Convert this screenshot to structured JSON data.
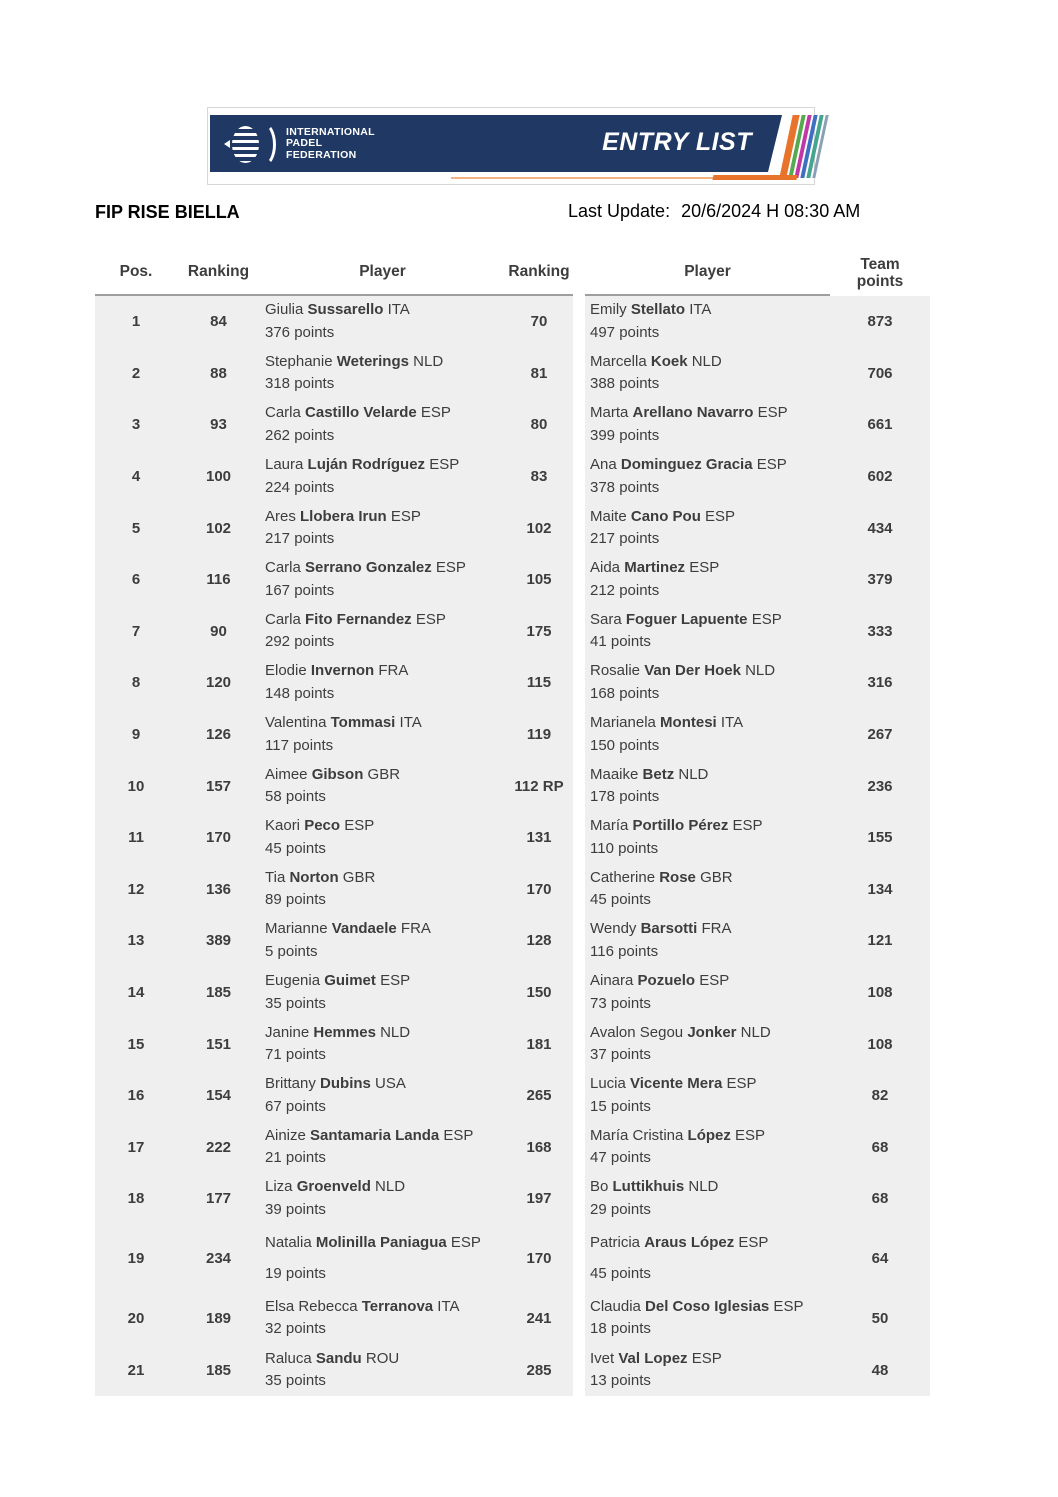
{
  "banner": {
    "logo_lines": [
      "INTERNATIONAL",
      "PADEL",
      "FEDERATION"
    ],
    "entry_list": "ENTRY LIST"
  },
  "header": {
    "title": "FIP RISE BIELLA",
    "last_update_label": "Last Update:",
    "last_update_value": "20/6/2024 H 08:30 AM"
  },
  "colors": {
    "navy": "#1f3864",
    "orange": "#e8742c",
    "orange_light": "#f4b183",
    "row_bg": "#efefef",
    "header_border": "#9e9e9e",
    "text": "#3d3d3d",
    "stripes": [
      "#e8742c",
      "#56a94f",
      "#c237a8",
      "#3e6fc1",
      "#45a58f",
      "#8aa0b4"
    ]
  },
  "table": {
    "columns": [
      "Pos.",
      "Ranking",
      "Player",
      "Ranking",
      "Player",
      "Team points"
    ],
    "rows": [
      {
        "pos": "1",
        "t1": {
          "rank": "84",
          "first": "Giulia",
          "last": "Sussarello",
          "country": "ITA",
          "points": "376 points"
        },
        "t2": {
          "rank": "70",
          "first": "Emily",
          "last": "Stellato",
          "country": "ITA",
          "points": "497 points"
        },
        "team": "873"
      },
      {
        "pos": "2",
        "t1": {
          "rank": "88",
          "first": "Stephanie",
          "last": "Weterings",
          "country": "NLD",
          "points": "318 points"
        },
        "t2": {
          "rank": "81",
          "first": "Marcella",
          "last": "Koek",
          "country": "NLD",
          "points": "388 points"
        },
        "team": "706"
      },
      {
        "pos": "3",
        "t1": {
          "rank": "93",
          "first": "Carla",
          "last": "Castillo Velarde",
          "country": "ESP",
          "points": "262 points"
        },
        "t2": {
          "rank": "80",
          "first": "Marta",
          "last": "Arellano Navarro",
          "country": "ESP",
          "points": "399 points"
        },
        "team": "661"
      },
      {
        "pos": "4",
        "t1": {
          "rank": "100",
          "first": "Laura",
          "last": "Luján Rodríguez",
          "country": "ESP",
          "points": "224 points"
        },
        "t2": {
          "rank": "83",
          "first": "Ana",
          "last": "Dominguez Gracia",
          "country": "ESP",
          "points": "378 points"
        },
        "team": "602"
      },
      {
        "pos": "5",
        "t1": {
          "rank": "102",
          "first": "Ares",
          "last": "Llobera Irun",
          "country": "ESP",
          "points": "217 points"
        },
        "t2": {
          "rank": "102",
          "first": "Maite",
          "last": "Cano Pou",
          "country": "ESP",
          "points": "217 points"
        },
        "team": "434"
      },
      {
        "pos": "6",
        "t1": {
          "rank": "116",
          "first": "Carla",
          "last": "Serrano Gonzalez",
          "country": "ESP",
          "points": "167 points"
        },
        "t2": {
          "rank": "105",
          "first": "Aida",
          "last": "Martinez",
          "country": "ESP",
          "points": "212 points"
        },
        "team": "379"
      },
      {
        "pos": "7",
        "t1": {
          "rank": "90",
          "first": "Carla",
          "last": "Fito Fernandez",
          "country": "ESP",
          "points": "292 points"
        },
        "t2": {
          "rank": "175",
          "first": "Sara",
          "last": "Foguer Lapuente",
          "country": "ESP",
          "points": "41 points"
        },
        "team": "333"
      },
      {
        "pos": "8",
        "t1": {
          "rank": "120",
          "first": "Elodie",
          "last": "Invernon",
          "country": "FRA",
          "points": "148 points"
        },
        "t2": {
          "rank": "115",
          "first": "Rosalie",
          "last": "Van Der Hoek",
          "country": "NLD",
          "points": "168 points"
        },
        "team": "316"
      },
      {
        "pos": "9",
        "t1": {
          "rank": "126",
          "first": "Valentina",
          "last": "Tommasi",
          "country": "ITA",
          "points": "117 points"
        },
        "t2": {
          "rank": "119",
          "first": "Marianela",
          "last": "Montesi",
          "country": "ITA",
          "points": "150 points"
        },
        "team": "267"
      },
      {
        "pos": "10",
        "t1": {
          "rank": "157",
          "first": "Aimee",
          "last": "Gibson",
          "country": "GBR",
          "points": "58 points"
        },
        "t2": {
          "rank": "112 RP",
          "first": "Maaike",
          "last": "Betz",
          "country": "NLD",
          "points": "178 points"
        },
        "team": "236"
      },
      {
        "pos": "11",
        "t1": {
          "rank": "170",
          "first": "Kaori",
          "last": "Peco",
          "country": "ESP",
          "points": "45 points"
        },
        "t2": {
          "rank": "131",
          "first": "María",
          "last": "Portillo Pérez",
          "country": "ESP",
          "points": "110 points"
        },
        "team": "155"
      },
      {
        "pos": "12",
        "t1": {
          "rank": "136",
          "first": "Tia",
          "last": "Norton",
          "country": "GBR",
          "points": "89 points"
        },
        "t2": {
          "rank": "170",
          "first": "Catherine",
          "last": "Rose",
          "country": "GBR",
          "points": "45 points"
        },
        "team": "134"
      },
      {
        "pos": "13",
        "t1": {
          "rank": "389",
          "first": "Marianne",
          "last": "Vandaele",
          "country": "FRA",
          "points": "5 points"
        },
        "t2": {
          "rank": "128",
          "first": "Wendy",
          "last": "Barsotti",
          "country": "FRA",
          "points": "116 points"
        },
        "team": "121"
      },
      {
        "pos": "14",
        "t1": {
          "rank": "185",
          "first": "Eugenia",
          "last": "Guimet",
          "country": "ESP",
          "points": "35 points"
        },
        "t2": {
          "rank": "150",
          "first": "Ainara",
          "last": "Pozuelo",
          "country": "ESP",
          "points": "73 points"
        },
        "team": "108"
      },
      {
        "pos": "15",
        "t1": {
          "rank": "151",
          "first": "Janine",
          "last": "Hemmes",
          "country": "NLD",
          "points": "71 points"
        },
        "t2": {
          "rank": "181",
          "first": "Avalon Segou",
          "last": "Jonker",
          "country": "NLD",
          "points": "37 points"
        },
        "team": "108"
      },
      {
        "pos": "16",
        "t1": {
          "rank": "154",
          "first": "Brittany",
          "last": "Dubins",
          "country": "USA",
          "points": "67 points"
        },
        "t2": {
          "rank": "265",
          "first": "Lucia",
          "last": "Vicente Mera",
          "country": "ESP",
          "points": "15 points"
        },
        "team": "82"
      },
      {
        "pos": "17",
        "t1": {
          "rank": "222",
          "first": "Ainize",
          "last": "Santamaria Landa",
          "country": "ESP",
          "points": "21 points"
        },
        "t2": {
          "rank": "168",
          "first": "María Cristina",
          "last": "López",
          "country": "ESP",
          "points": "47 points"
        },
        "team": "68"
      },
      {
        "pos": "18",
        "t1": {
          "rank": "177",
          "first": "Liza",
          "last": "Groenveld",
          "country": "NLD",
          "points": "39 points"
        },
        "t2": {
          "rank": "197",
          "first": "Bo",
          "last": "Luttikhuis",
          "country": "NLD",
          "points": "29 points"
        },
        "team": "68"
      },
      {
        "pos": "19",
        "tall": true,
        "t1": {
          "rank": "234",
          "first": "Natalia",
          "last": "Molinilla Paniagua",
          "country": "ESP",
          "points": "19 points"
        },
        "t2": {
          "rank": "170",
          "first": "Patricia",
          "last": "Araus López",
          "country": "ESP",
          "points": "45 points"
        },
        "team": "64"
      },
      {
        "pos": "20",
        "t1": {
          "rank": "189",
          "first": "Elsa Rebecca",
          "last": "Terranova",
          "country": "ITA",
          "points": "32 points"
        },
        "t2": {
          "rank": "241",
          "first": "Claudia",
          "last": "Del Coso Iglesias",
          "country": "ESP",
          "points": "18 points"
        },
        "team": "50"
      },
      {
        "pos": "21",
        "t1": {
          "rank": "185",
          "first": "Raluca",
          "last": "Sandu",
          "country": "ROU",
          "points": "35 points"
        },
        "t2": {
          "rank": "285",
          "first": "Ivet",
          "last": "Val Lopez",
          "country": "ESP",
          "points": "13 points"
        },
        "team": "48"
      }
    ]
  }
}
